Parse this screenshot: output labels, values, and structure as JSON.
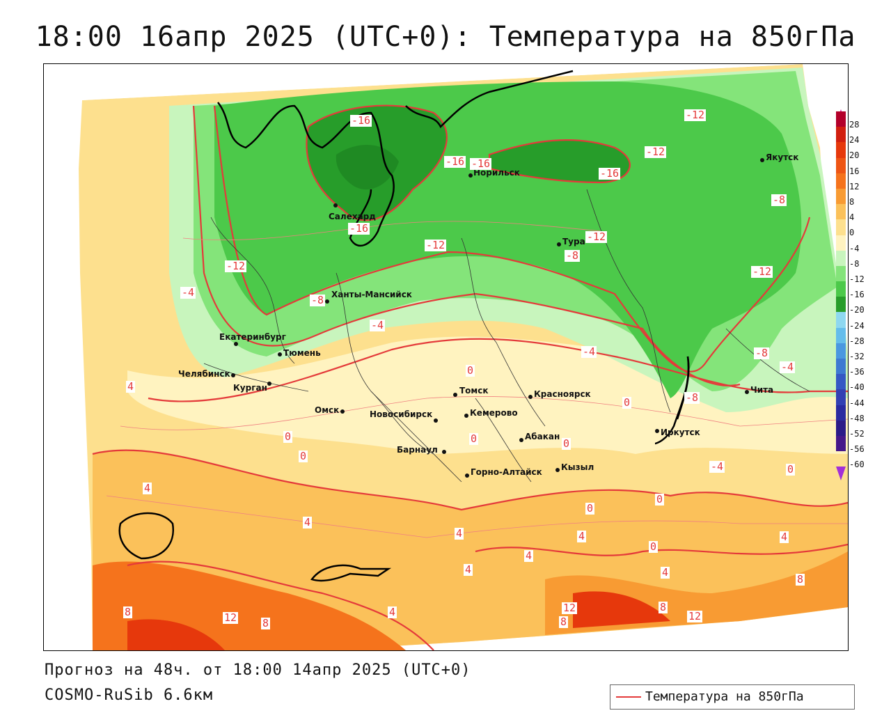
{
  "title": "18:00 16апр 2025 (UTC+0): Температура на 850гПа",
  "footer": {
    "forecast": "Прогноз на 48ч. от 18:00 14апр 2025 (UTC+0)",
    "model": "COSMO-RuSib 6.6км"
  },
  "legend": {
    "label": "Температура на 850гПа",
    "line_color": "#e43a3a"
  },
  "colorbar": {
    "ticks": [
      "28",
      "24",
      "20",
      "16",
      "12",
      "8",
      "4",
      "0",
      "-4",
      "-8",
      "-12",
      "-16",
      "-20",
      "-24",
      "-28",
      "-32",
      "-36",
      "-40",
      "-44",
      "-48",
      "-52",
      "-56",
      "-60"
    ],
    "colors": [
      "#b3002a",
      "#d11f0f",
      "#e6380c",
      "#ee5514",
      "#f5731c",
      "#f89b33",
      "#fbc15a",
      "#fde08e",
      "#fff3c0",
      "#c8f5bd",
      "#84e47a",
      "#4cc94a",
      "#279d2a",
      "#8ed8f0",
      "#64bdeb",
      "#4a98e0",
      "#3d7ad2",
      "#3458c4",
      "#3340b3",
      "#2b2aa0",
      "#2b1a88",
      "#45178a"
    ]
  },
  "cities": [
    {
      "name": "Якутск"
    },
    {
      "name": "Норильск"
    },
    {
      "name": "Салехард"
    },
    {
      "name": "Тура"
    },
    {
      "name": "Ханты-Мансийск"
    },
    {
      "name": "Екатеринбург"
    },
    {
      "name": "Тюмень"
    },
    {
      "name": "Челябинск"
    },
    {
      "name": "Курган"
    },
    {
      "name": "Омск"
    },
    {
      "name": "Томск"
    },
    {
      "name": "Новосибирск"
    },
    {
      "name": "Кемерово"
    },
    {
      "name": "Красноярск"
    },
    {
      "name": "Абакан"
    },
    {
      "name": "Барнаул"
    },
    {
      "name": "Иркутск"
    },
    {
      "name": "Горно-Алтайск"
    },
    {
      "name": "Кызыл"
    },
    {
      "name": "Чита"
    }
  ],
  "contour_labels": [
    "-16",
    "-16",
    "-16",
    "-16",
    "-16",
    "-12",
    "-12",
    "-12",
    "-12",
    "-12",
    "-12",
    "-8",
    "-8",
    "-8",
    "-8",
    "-8",
    "-4",
    "-4",
    "-4",
    "-4",
    "-4",
    "0",
    "0",
    "0",
    "0",
    "0",
    "0",
    "0",
    "0",
    "0",
    "0",
    "4",
    "4",
    "4",
    "4",
    "4",
    "4",
    "4",
    "4",
    "4",
    "4",
    "8",
    "8",
    "8",
    "8",
    "8",
    "12",
    "12",
    "12"
  ]
}
